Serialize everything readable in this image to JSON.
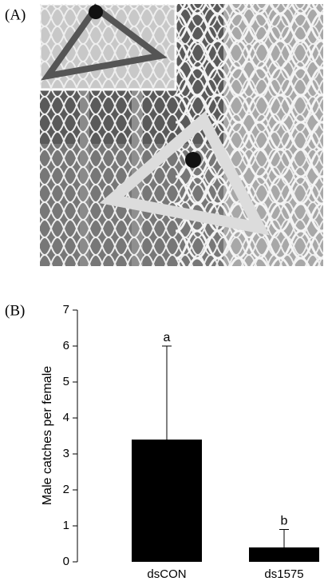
{
  "panels": {
    "a": "(A)",
    "b": "(B)"
  },
  "chart_data": {
    "type": "bar",
    "ylabel": "Male catches per female",
    "categories": [
      "dsCON",
      "ds1575"
    ],
    "values": [
      3.4,
      0.4
    ],
    "errors": [
      2.6,
      0.5
    ],
    "annotations": [
      "a",
      "b"
    ],
    "color": "#000000",
    "ylim": [
      0,
      7
    ],
    "yticks": [
      0,
      1,
      2,
      3,
      4,
      5,
      6,
      7
    ]
  }
}
